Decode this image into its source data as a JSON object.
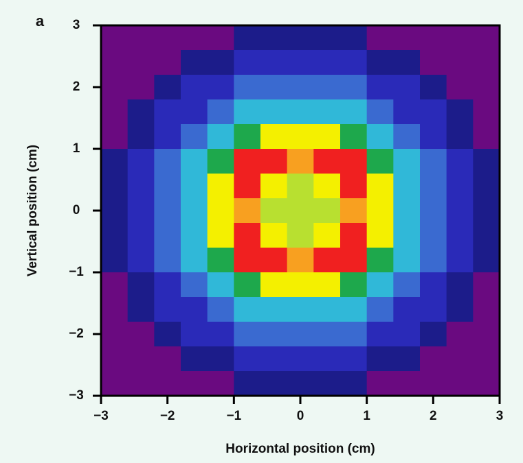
{
  "chart_data": {
    "type": "heatmap",
    "panel_label": "a",
    "xlabel": "Horizontal position (cm)",
    "ylabel": "Vertical position (cm)",
    "x": [
      -2.8,
      -2.4,
      -2.0,
      -1.6,
      -1.2,
      -0.8,
      -0.4,
      0,
      0.4,
      0.8,
      1.2,
      1.6,
      2.0,
      2.4,
      2.8
    ],
    "y": [
      2.8,
      2.4,
      2.0,
      1.6,
      1.2,
      0.8,
      0.4,
      0,
      -0.4,
      -0.8,
      -1.2,
      -1.6,
      -2.0,
      -2.4,
      -2.8
    ],
    "z": [
      [
        0,
        0,
        0,
        0,
        0,
        1,
        1,
        1,
        1,
        1,
        0,
        0,
        0,
        0,
        0
      ],
      [
        0,
        0,
        0,
        1,
        1,
        2,
        2,
        2,
        2,
        2,
        1,
        1,
        0,
        0,
        0
      ],
      [
        0,
        0,
        1,
        2,
        2,
        3,
        3,
        3,
        3,
        3,
        2,
        2,
        1,
        0,
        0
      ],
      [
        0,
        1,
        2,
        2,
        3,
        4,
        4,
        4,
        4,
        4,
        3,
        2,
        2,
        1,
        0
      ],
      [
        0,
        1,
        2,
        3,
        4,
        5,
        7,
        7,
        7,
        5,
        4,
        3,
        2,
        1,
        0
      ],
      [
        1,
        2,
        3,
        4,
        5,
        9,
        9,
        8,
        9,
        9,
        5,
        4,
        3,
        2,
        1
      ],
      [
        1,
        2,
        3,
        4,
        7,
        9,
        7,
        6,
        7,
        9,
        7,
        4,
        3,
        2,
        1
      ],
      [
        1,
        2,
        3,
        4,
        7,
        8,
        6,
        6,
        6,
        8,
        7,
        4,
        3,
        2,
        1
      ],
      [
        1,
        2,
        3,
        4,
        7,
        9,
        7,
        6,
        7,
        9,
        7,
        4,
        3,
        2,
        1
      ],
      [
        1,
        2,
        3,
        4,
        5,
        9,
        9,
        8,
        9,
        9,
        5,
        4,
        3,
        2,
        1
      ],
      [
        0,
        1,
        2,
        3,
        4,
        5,
        7,
        7,
        7,
        5,
        4,
        3,
        2,
        1,
        0
      ],
      [
        0,
        1,
        2,
        2,
        3,
        4,
        4,
        4,
        4,
        4,
        3,
        2,
        2,
        1,
        0
      ],
      [
        0,
        0,
        1,
        2,
        2,
        3,
        3,
        3,
        3,
        3,
        2,
        2,
        1,
        0,
        0
      ],
      [
        0,
        0,
        0,
        1,
        1,
        2,
        2,
        2,
        2,
        2,
        1,
        1,
        0,
        0,
        0
      ],
      [
        0,
        0,
        0,
        0,
        0,
        1,
        1,
        1,
        1,
        1,
        0,
        0,
        0,
        0,
        0
      ]
    ],
    "colorscale": [
      "#6a0a80",
      "#1c1c8a",
      "#2a2ab8",
      "#3a6ad0",
      "#30b8d8",
      "#1ea84c",
      "#b8e030",
      "#f4f000",
      "#f8a020",
      "#f02020"
    ],
    "xlim": [
      -3,
      3
    ],
    "ylim": [
      -3,
      3
    ],
    "xticks": [
      {
        "value": -3,
        "label": "−3"
      },
      {
        "value": -2,
        "label": "−2"
      },
      {
        "value": -1,
        "label": "−1"
      },
      0,
      1,
      2,
      3
    ],
    "yticks": [
      {
        "value": -3,
        "label": "−3"
      },
      {
        "value": -2,
        "label": "−2"
      },
      {
        "value": -1,
        "label": "−1"
      },
      0,
      1,
      2,
      3
    ]
  }
}
